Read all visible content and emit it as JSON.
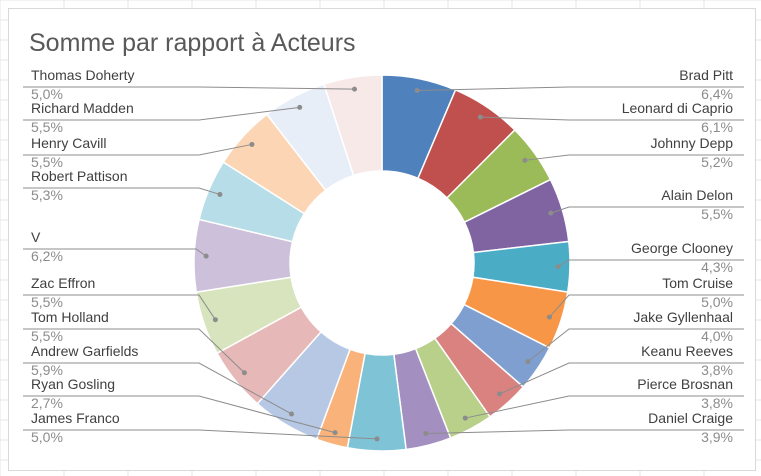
{
  "chart_data": {
    "type": "pie",
    "variant": "doughnut",
    "title": "Somme par rapport à Acteurs",
    "legend": "none",
    "categories": [
      "Brad Pitt",
      "Leonard di Caprio",
      "Johnny Depp",
      "Alain Delon",
      "George Clooney",
      "Tom Cruise",
      "Jake Gyllenhaal",
      "Keanu Reeves",
      "Pierce Brosnan",
      "Daniel Craige",
      "James Franco",
      "Ryan Gosling",
      "Andrew Garfields",
      "Tom Holland",
      "Zac Effron",
      "V",
      "Robert Pattison",
      "Henry Cavill",
      "Richard Madden",
      "Thomas Doherty"
    ],
    "values": [
      6.4,
      6.1,
      5.2,
      5.5,
      4.3,
      5.0,
      4.0,
      3.8,
      3.8,
      3.9,
      5.0,
      2.7,
      5.9,
      5.5,
      5.5,
      6.2,
      5.3,
      5.5,
      5.5,
      5.0
    ],
    "value_labels": [
      "6,4%",
      "6,1%",
      "5,2%",
      "5,5%",
      "4,3%",
      "5,0%",
      "4,0%",
      "3,8%",
      "3,8%",
      "3,9%",
      "5,0%",
      "2,7%",
      "5,9%",
      "5,5%",
      "5,5%",
      "6,2%",
      "5,3%",
      "5,5%",
      "5,5%",
      "5,0%"
    ],
    "colors": [
      "#4f81bd",
      "#c0504d",
      "#9bbb59",
      "#8064a2",
      "#4bacc6",
      "#f79646",
      "#7f9fd0",
      "#d98280",
      "#b8d08a",
      "#a490c0",
      "#7fc3d6",
      "#f9b27a",
      "#b6c8e4",
      "#e6b8b7",
      "#d7e4bd",
      "#ccc0da",
      "#b7dee8",
      "#fcd5b4",
      "#e8eef8",
      "#f8e9e9"
    ]
  }
}
